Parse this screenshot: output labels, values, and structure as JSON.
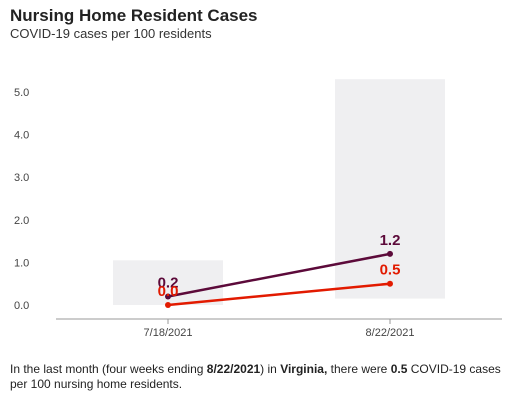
{
  "header": {
    "title": "Nursing Home Resident Cases",
    "subtitle": "COVID-19 cases per 100 residents"
  },
  "chart_data": {
    "type": "line",
    "title": "Nursing Home Resident Cases",
    "subtitle": "COVID-19 cases per 100 residents",
    "categories": [
      "7/18/2021",
      "8/22/2021"
    ],
    "ylim": [
      0,
      5
    ],
    "yticks": [
      "0.0",
      "1.0",
      "2.0",
      "3.0",
      "4.0",
      "5.0"
    ],
    "grid": false,
    "band": {
      "low": [
        0.0,
        0.15
      ],
      "high": [
        1.05,
        5.3
      ],
      "color": "#efeff1"
    },
    "series": [
      {
        "values": [
          0.2,
          1.2
        ],
        "labels": [
          "0.2",
          "1.2"
        ],
        "color": "#5c0a3a"
      },
      {
        "values": [
          0.0,
          0.5
        ],
        "labels": [
          "0.0",
          "0.5"
        ],
        "color": "#e21a00"
      }
    ]
  },
  "footnote": {
    "part1": "In the last month (four weeks ending ",
    "date": "8/22/2021",
    "part2": ") in ",
    "state": "Virginia,",
    "part3": " there were ",
    "value": "0.5",
    "part4": " COVID-19 cases per 100 nursing home residents."
  }
}
